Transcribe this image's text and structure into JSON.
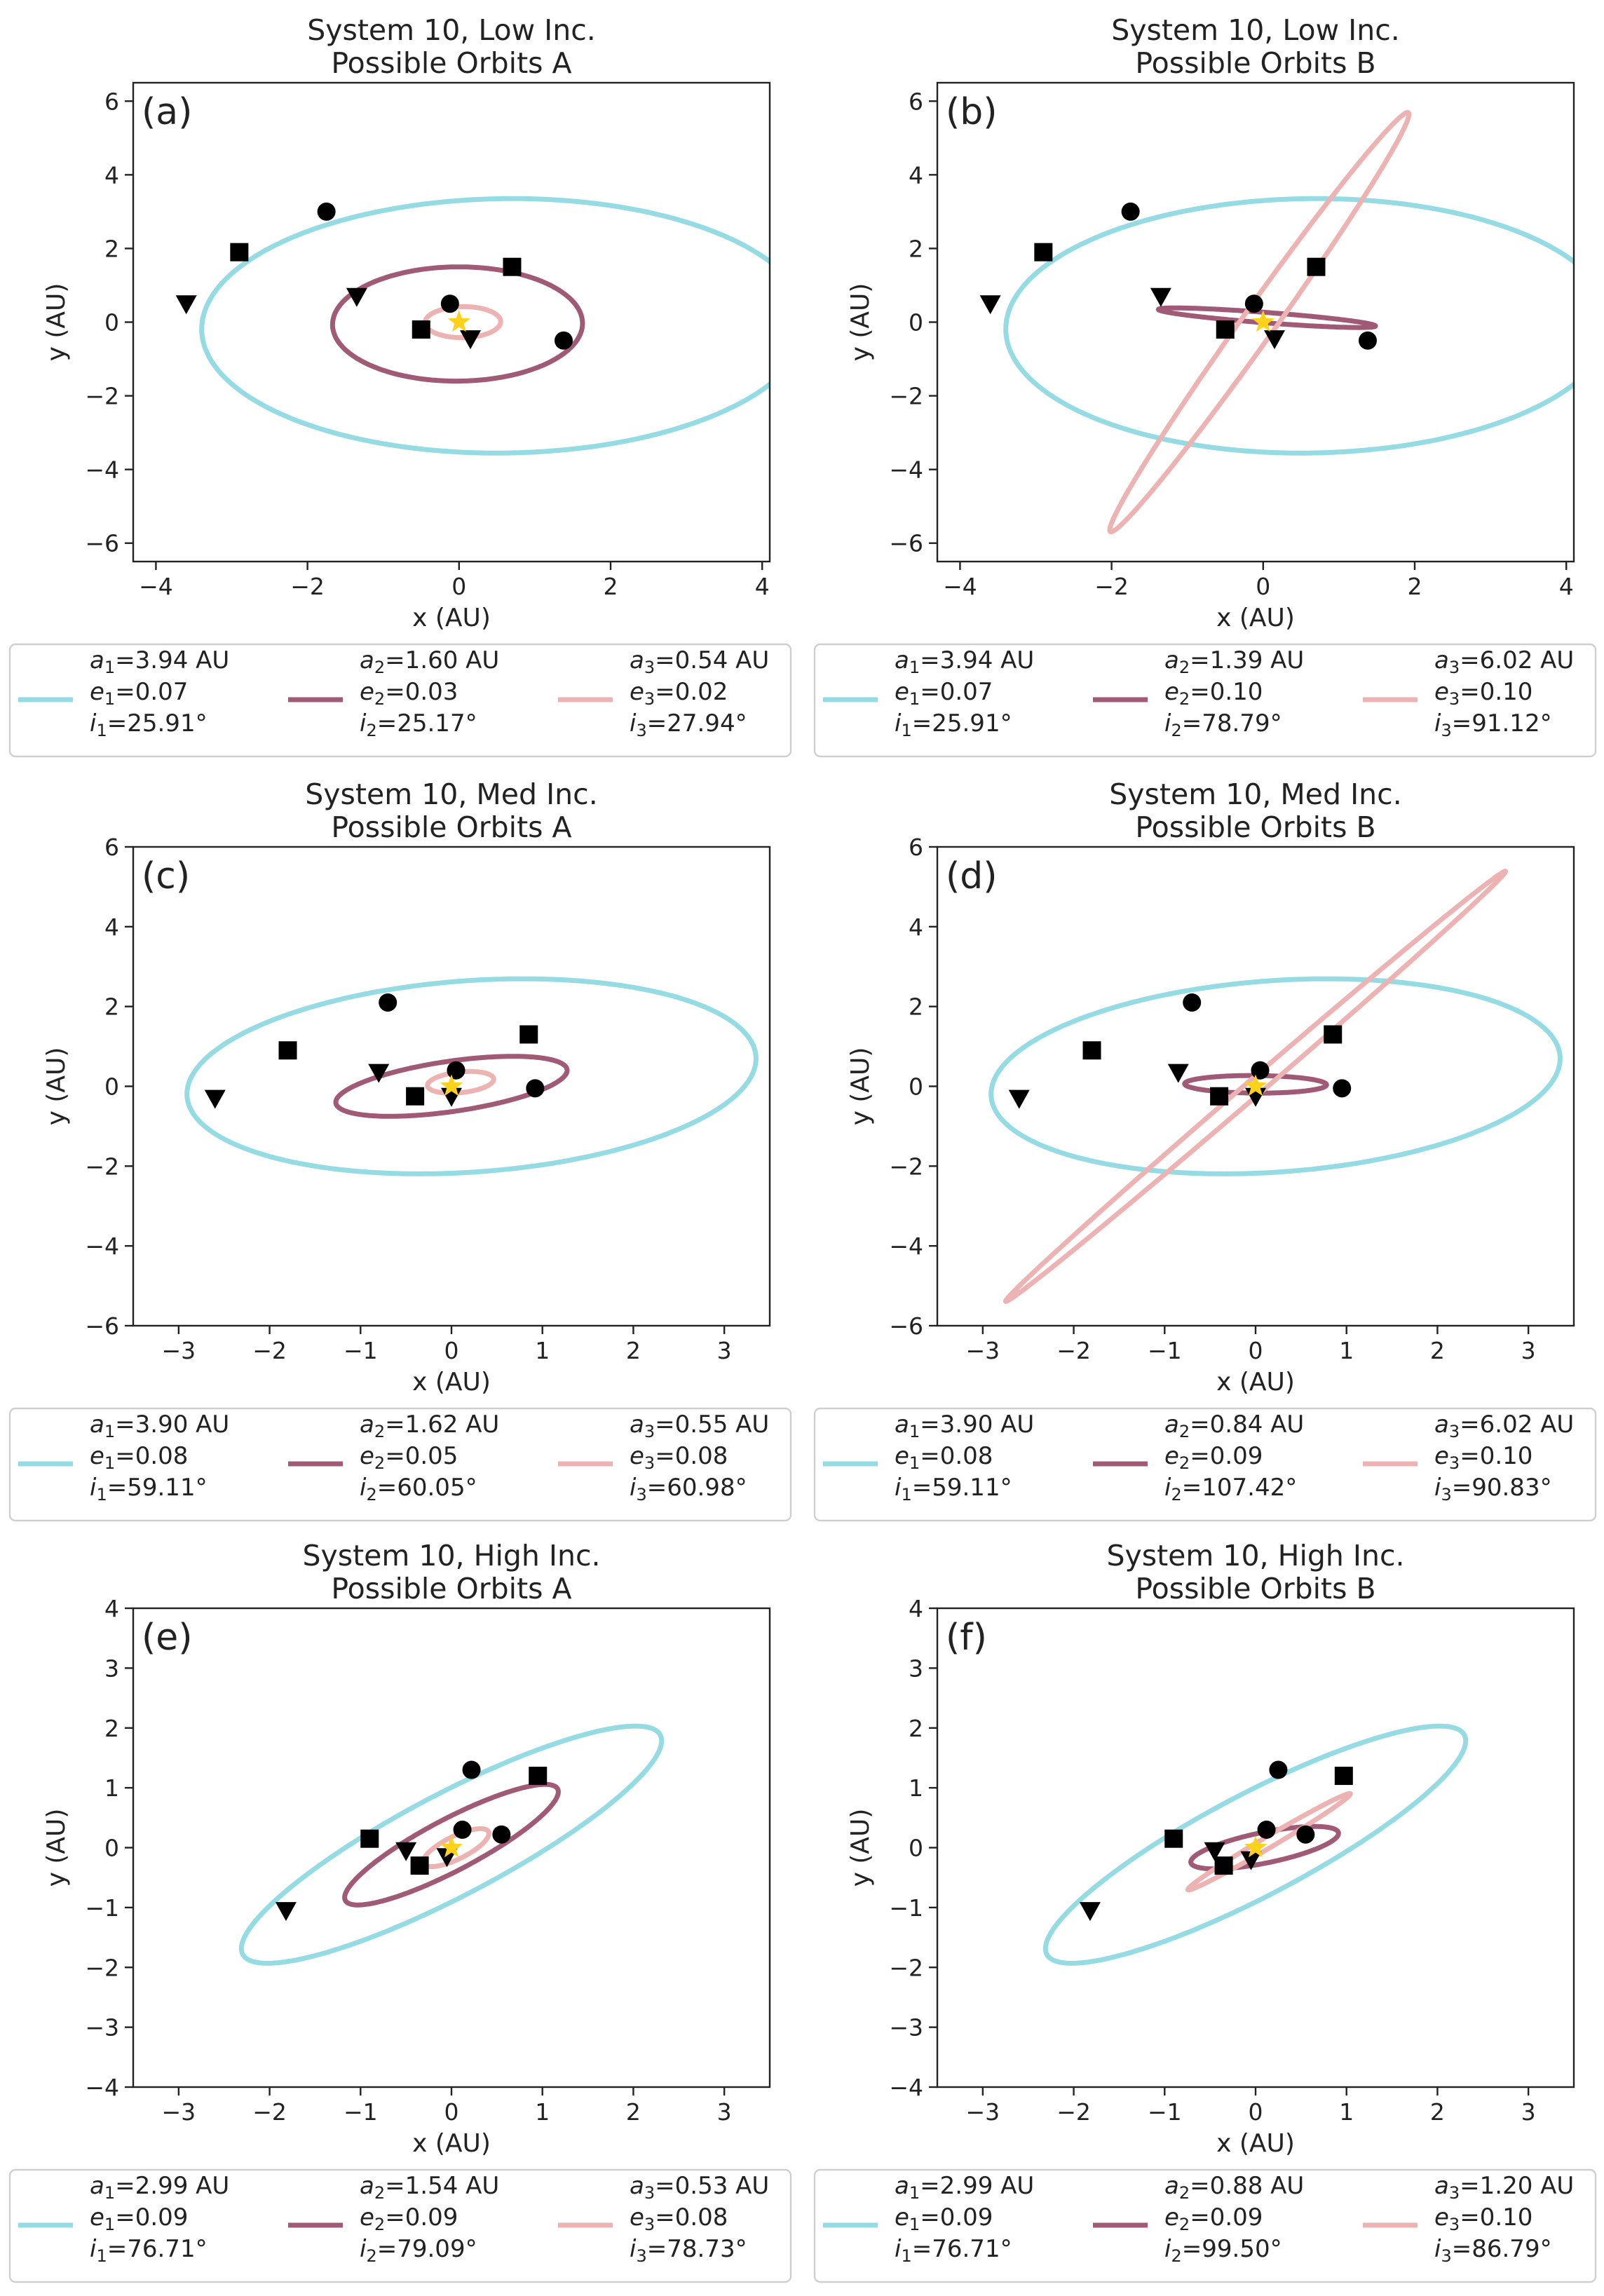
{
  "chart_data": [
    {
      "id": "a",
      "type": "line",
      "panel_label": "(a)",
      "title": [
        "System 10, Low Inc.",
        "Possible Orbits A"
      ],
      "xlabel": "x (AU)",
      "ylabel": "y (AU)",
      "xlim": [
        -4.3,
        4.1
      ],
      "ylim": [
        -6.5,
        6.5
      ],
      "xticks": [
        -4,
        -2,
        0,
        2,
        4
      ],
      "yticks": [
        -6,
        -4,
        -2,
        0,
        2,
        4,
        6
      ],
      "orbits": [
        {
          "cx": 0.6,
          "cy": -0.1,
          "a": 4.0,
          "b": 3.45,
          "rot": 5
        },
        {
          "cx": -0.02,
          "cy": -0.05,
          "a": 1.65,
          "b": 1.55,
          "rot": 5
        },
        {
          "cx": 0.05,
          "cy": 0.0,
          "a": 0.5,
          "b": 0.42,
          "rot": 5
        }
      ],
      "markers": [
        {
          "shape": "circle",
          "x": -1.75,
          "y": 3.0
        },
        {
          "shape": "square",
          "x": -2.9,
          "y": 1.9
        },
        {
          "shape": "triangle",
          "x": -3.6,
          "y": 0.5
        },
        {
          "shape": "square",
          "x": 0.7,
          "y": 1.5
        },
        {
          "shape": "triangle",
          "x": -1.35,
          "y": 0.7
        },
        {
          "shape": "circle",
          "x": -0.12,
          "y": 0.5
        },
        {
          "shape": "square",
          "x": -0.5,
          "y": -0.2
        },
        {
          "shape": "triangle",
          "x": 0.15,
          "y": -0.45
        },
        {
          "shape": "circle",
          "x": 1.38,
          "y": -0.5
        }
      ],
      "legend": [
        {
          "a": "3.94 AU",
          "e": "0.07",
          "i": "25.91°"
        },
        {
          "a": "1.60 AU",
          "e": "0.03",
          "i": "25.17°"
        },
        {
          "a": "0.54 AU",
          "e": "0.02",
          "i": "27.94°"
        }
      ]
    },
    {
      "id": "b",
      "type": "line",
      "panel_label": "(b)",
      "title": [
        "System 10, Low Inc.",
        "Possible Orbits B"
      ],
      "xlabel": "x (AU)",
      "ylabel": "y (AU)",
      "xlim": [
        -4.3,
        4.1
      ],
      "ylim": [
        -6.5,
        6.5
      ],
      "xticks": [
        -4,
        -2,
        0,
        2,
        4
      ],
      "yticks": [
        -6,
        -4,
        -2,
        0,
        2,
        4,
        6
      ],
      "orbits": [
        {
          "cx": 0.6,
          "cy": -0.1,
          "a": 4.0,
          "b": 3.45,
          "rot": 5
        },
        {
          "cx": 0.05,
          "cy": 0.12,
          "a": 1.45,
          "b": 0.14,
          "rot": -9
        },
        {
          "cx": -0.05,
          "cy": 0.0,
          "a": 6.02,
          "b": 0.25,
          "rot": 71
        }
      ],
      "markers": [
        {
          "shape": "circle",
          "x": -1.75,
          "y": 3.0
        },
        {
          "shape": "square",
          "x": -2.9,
          "y": 1.9
        },
        {
          "shape": "triangle",
          "x": -3.6,
          "y": 0.5
        },
        {
          "shape": "square",
          "x": 0.7,
          "y": 1.5
        },
        {
          "shape": "triangle",
          "x": -1.35,
          "y": 0.7
        },
        {
          "shape": "circle",
          "x": -0.12,
          "y": 0.5
        },
        {
          "shape": "square",
          "x": -0.5,
          "y": -0.2
        },
        {
          "shape": "triangle",
          "x": 0.15,
          "y": -0.45
        },
        {
          "shape": "circle",
          "x": 1.38,
          "y": -0.5
        }
      ],
      "legend": [
        {
          "a": "3.94 AU",
          "e": "0.07",
          "i": "25.91°"
        },
        {
          "a": "1.39 AU",
          "e": "0.10",
          "i": "78.79°"
        },
        {
          "a": "6.02 AU",
          "e": "0.10",
          "i": "91.12°"
        }
      ]
    },
    {
      "id": "c",
      "type": "line",
      "panel_label": "(c)",
      "title": [
        "System 10, Med Inc.",
        "Possible Orbits A"
      ],
      "xlabel": "x (AU)",
      "ylabel": "y (AU)",
      "xlim": [
        -3.5,
        3.5
      ],
      "ylim": [
        -6,
        6
      ],
      "xticks": [
        -3,
        -2,
        -1,
        0,
        1,
        2,
        3
      ],
      "yticks": [
        -6,
        -4,
        -2,
        0,
        2,
        4,
        6
      ],
      "orbits": [
        {
          "cx": 0.22,
          "cy": 0.25,
          "a": 3.2,
          "b": 2.35,
          "rot": 18
        },
        {
          "cx": 0.0,
          "cy": 0.0,
          "a": 1.35,
          "b": 0.6,
          "rot": 22
        },
        {
          "cx": 0.1,
          "cy": 0.1,
          "a": 0.38,
          "b": 0.25,
          "rot": 22
        }
      ],
      "markers": [
        {
          "shape": "circle",
          "x": -0.7,
          "y": 2.1
        },
        {
          "shape": "square",
          "x": -1.8,
          "y": 0.9
        },
        {
          "shape": "triangle",
          "x": -2.6,
          "y": -0.3
        },
        {
          "shape": "square",
          "x": 0.85,
          "y": 1.3
        },
        {
          "shape": "triangle",
          "x": -0.8,
          "y": 0.35
        },
        {
          "shape": "circle",
          "x": 0.05,
          "y": 0.4
        },
        {
          "shape": "square",
          "x": -0.4,
          "y": -0.25
        },
        {
          "shape": "triangle",
          "x": 0.0,
          "y": -0.25
        },
        {
          "shape": "circle",
          "x": 0.92,
          "y": -0.05
        }
      ],
      "legend": [
        {
          "a": "3.90 AU",
          "e": "0.08",
          "i": "59.11°"
        },
        {
          "a": "1.62 AU",
          "e": "0.05",
          "i": "60.05°"
        },
        {
          "a": "0.55 AU",
          "e": "0.08",
          "i": "60.98°"
        }
      ]
    },
    {
      "id": "d",
      "type": "line",
      "panel_label": "(d)",
      "title": [
        "System 10, Med Inc.",
        "Possible Orbits B"
      ],
      "xlabel": "x (AU)",
      "ylabel": "y (AU)",
      "xlim": [
        -3.5,
        3.5
      ],
      "ylim": [
        -6,
        6
      ],
      "xticks": [
        -3,
        -2,
        -1,
        0,
        1,
        2,
        3
      ],
      "yticks": [
        -6,
        -4,
        -2,
        0,
        2,
        4,
        6
      ],
      "orbits": [
        {
          "cx": 0.22,
          "cy": 0.25,
          "a": 3.2,
          "b": 2.35,
          "rot": 18
        },
        {
          "cx": 0.0,
          "cy": 0.05,
          "a": 0.78,
          "b": 0.22,
          "rot": -1
        },
        {
          "cx": 0.0,
          "cy": 0.0,
          "a": 6.05,
          "b": 0.12,
          "rot": 63
        }
      ],
      "markers": [
        {
          "shape": "circle",
          "x": -0.7,
          "y": 2.1
        },
        {
          "shape": "square",
          "x": -1.8,
          "y": 0.9
        },
        {
          "shape": "triangle",
          "x": -2.6,
          "y": -0.3
        },
        {
          "shape": "square",
          "x": 0.85,
          "y": 1.3
        },
        {
          "shape": "triangle",
          "x": -0.85,
          "y": 0.35
        },
        {
          "shape": "circle",
          "x": 0.05,
          "y": 0.4
        },
        {
          "shape": "square",
          "x": -0.4,
          "y": -0.25
        },
        {
          "shape": "triangle",
          "x": 0.0,
          "y": -0.25
        },
        {
          "shape": "circle",
          "x": 0.95,
          "y": -0.05
        }
      ],
      "legend": [
        {
          "a": "3.90 AU",
          "e": "0.08",
          "i": "59.11°"
        },
        {
          "a": "0.84 AU",
          "e": "0.09",
          "i": "107.42°"
        },
        {
          "a": "6.02 AU",
          "e": "0.10",
          "i": "90.83°"
        }
      ]
    },
    {
      "id": "e",
      "type": "line",
      "panel_label": "(e)",
      "title": [
        "System 10, High Inc.",
        "Possible Orbits A"
      ],
      "xlabel": "x (AU)",
      "ylabel": "y (AU)",
      "xlim": [
        -3.5,
        3.5
      ],
      "ylim": [
        -4,
        4
      ],
      "xticks": [
        -3,
        -2,
        -1,
        0,
        1,
        2,
        3
      ],
      "yticks": [
        -4,
        -3,
        -2,
        -1,
        0,
        1,
        2,
        3,
        4
      ],
      "orbits": [
        {
          "cx": 0.0,
          "cy": 0.05,
          "a": 2.95,
          "b": 0.75,
          "rot": 40
        },
        {
          "cx": 0.0,
          "cy": 0.05,
          "a": 1.5,
          "b": 0.38,
          "rot": 40
        },
        {
          "cx": 0.05,
          "cy": 0.0,
          "a": 0.45,
          "b": 0.17,
          "rot": 40
        }
      ],
      "markers": [
        {
          "shape": "circle",
          "x": 0.22,
          "y": 1.3
        },
        {
          "shape": "square",
          "x": -0.9,
          "y": 0.15
        },
        {
          "shape": "triangle",
          "x": -1.82,
          "y": -1.05
        },
        {
          "shape": "square",
          "x": 0.95,
          "y": 1.2
        },
        {
          "shape": "triangle",
          "x": -0.5,
          "y": -0.05
        },
        {
          "shape": "circle",
          "x": 0.12,
          "y": 0.3
        },
        {
          "shape": "square",
          "x": -0.35,
          "y": -0.3
        },
        {
          "shape": "triangle",
          "x": -0.05,
          "y": -0.15
        },
        {
          "shape": "circle",
          "x": 0.55,
          "y": 0.22
        }
      ],
      "legend": [
        {
          "a": "2.99 AU",
          "e": "0.09",
          "i": "76.71°"
        },
        {
          "a": "1.54 AU",
          "e": "0.09",
          "i": "79.09°"
        },
        {
          "a": "0.53 AU",
          "e": "0.08",
          "i": "78.73°"
        }
      ]
    },
    {
      "id": "f",
      "type": "line",
      "panel_label": "(f)",
      "title": [
        "System 10, High Inc.",
        "Possible Orbits B"
      ],
      "xlabel": "x (AU)",
      "ylabel": "y (AU)",
      "xlim": [
        -3.5,
        3.5
      ],
      "ylim": [
        -4,
        4
      ],
      "xticks": [
        -3,
        -2,
        -1,
        0,
        1,
        2,
        3
      ],
      "yticks": [
        -4,
        -3,
        -2,
        -1,
        0,
        1,
        2,
        3,
        4
      ],
      "orbits": [
        {
          "cx": 0.0,
          "cy": 0.05,
          "a": 2.95,
          "b": 0.75,
          "rot": 40
        },
        {
          "cx": 0.1,
          "cy": 0.0,
          "a": 0.85,
          "b": 0.25,
          "rot": 18
        },
        {
          "cx": 0.15,
          "cy": 0.1,
          "a": 1.2,
          "b": 0.08,
          "rot": 42
        }
      ],
      "markers": [
        {
          "shape": "circle",
          "x": 0.25,
          "y": 1.3
        },
        {
          "shape": "square",
          "x": -0.9,
          "y": 0.15
        },
        {
          "shape": "triangle",
          "x": -1.82,
          "y": -1.05
        },
        {
          "shape": "square",
          "x": 0.97,
          "y": 1.2
        },
        {
          "shape": "triangle",
          "x": -0.45,
          "y": -0.05
        },
        {
          "shape": "circle",
          "x": 0.12,
          "y": 0.3
        },
        {
          "shape": "square",
          "x": -0.35,
          "y": -0.3
        },
        {
          "shape": "triangle",
          "x": -0.05,
          "y": -0.2
        },
        {
          "shape": "circle",
          "x": 0.55,
          "y": 0.22
        }
      ],
      "legend": [
        {
          "a": "2.99 AU",
          "e": "0.09",
          "i": "76.71°"
        },
        {
          "a": "0.88 AU",
          "e": "0.09",
          "i": "99.50°"
        },
        {
          "a": "1.20 AU",
          "e": "0.10",
          "i": "86.79°"
        }
      ]
    }
  ],
  "colors": {
    "orbit1": "#95dbe3",
    "orbit2": "#a15a76",
    "orbit3": "#ecb3b2",
    "marker": "#000000",
    "star": "#ffd21a"
  }
}
